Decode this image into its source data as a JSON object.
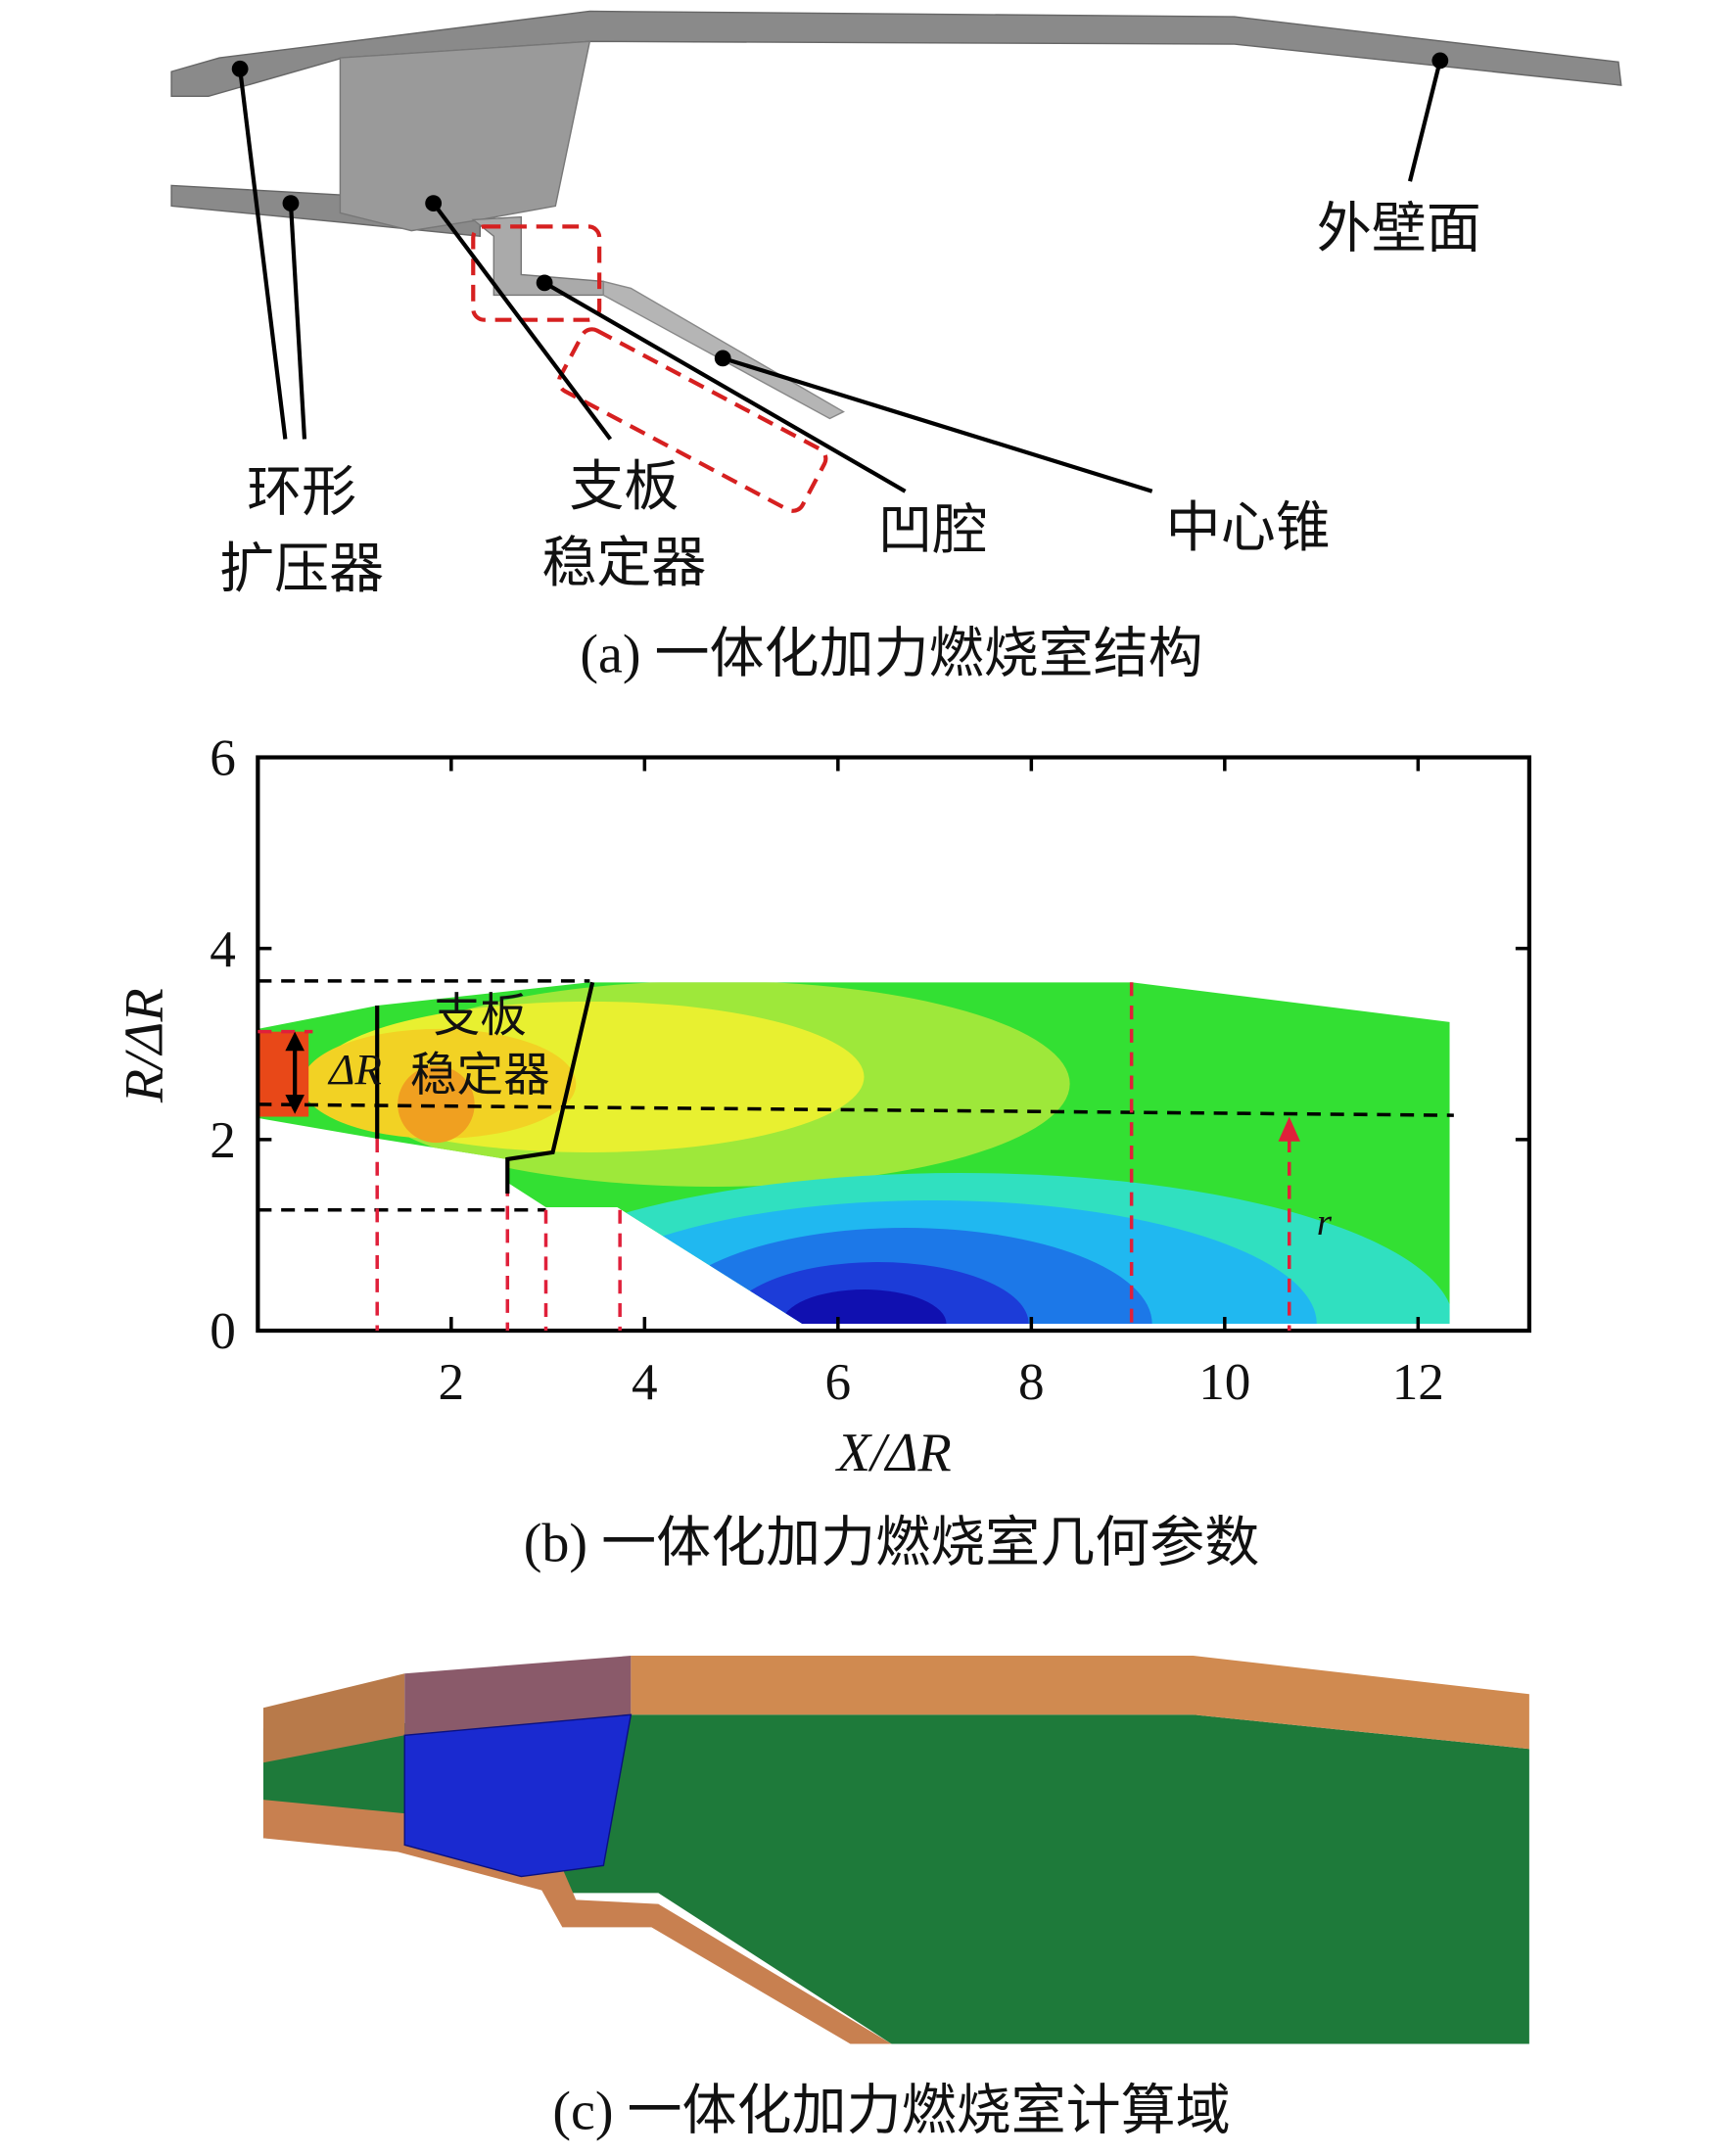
{
  "panel_a": {
    "annular_diffuser": [
      "环形",
      "扩压器"
    ],
    "strut_stabilizer": [
      "支板",
      "稳定器"
    ],
    "cavity": "凹腔",
    "center_cone": "中心锥",
    "outer_wall": "外壁面",
    "caption": "(a) 一体化加力燃烧室结构"
  },
  "panel_b": {
    "xlabel": "X/ΔR",
    "ylabel": "R/ΔR",
    "xlim": [
      0,
      13.15
    ],
    "ylim": [
      0,
      6
    ],
    "xticks": [
      2,
      4,
      6,
      8,
      10,
      12
    ],
    "yticks": [
      0,
      2,
      4,
      6
    ],
    "delta_r_label": "ΔR",
    "r_label": "r",
    "strut_label": [
      "支板",
      "稳定器"
    ],
    "caption": "(b) 一体化加力燃烧室几何参数"
  },
  "panel_c": {
    "caption": "(c) 一体化加力燃烧室计算域"
  }
}
